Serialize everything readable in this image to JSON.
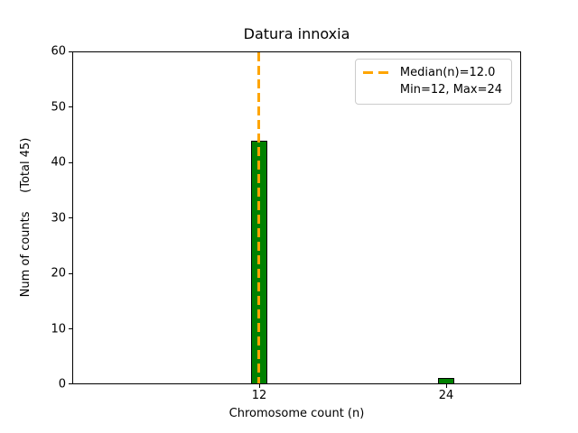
{
  "chart_data": {
    "type": "bar",
    "title": "Datura innoxia",
    "xlabel": "Chromosome count (n)",
    "ylabel": "Num of counts     (Total 45)",
    "categories": [
      12,
      24
    ],
    "values": [
      44,
      1
    ],
    "total_counts": 45,
    "ylim": [
      0,
      60
    ],
    "yticks": [
      0,
      10,
      20,
      30,
      40,
      50,
      60
    ],
    "xtick_labels": [
      "12",
      "24"
    ],
    "bar_color": "#008000",
    "bar_edge_color": "#000000",
    "median_line": {
      "x": 12,
      "value": 12.0,
      "color": "#FFA500",
      "style": "dashed",
      "orientation": "vertical"
    },
    "legend": {
      "position": "upper right",
      "entries": [
        {
          "label": "Median(n)=12.0",
          "marker": "orange-dashed-line"
        },
        {
          "label": "Min=12, Max=24",
          "marker": "none"
        }
      ]
    },
    "grid": false
  }
}
